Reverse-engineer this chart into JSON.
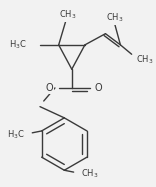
{
  "background_color": "#f2f2f2",
  "line_color": "#3a3a3a",
  "text_color": "#3a3a3a",
  "figsize": [
    1.56,
    1.87
  ],
  "dpi": 100
}
